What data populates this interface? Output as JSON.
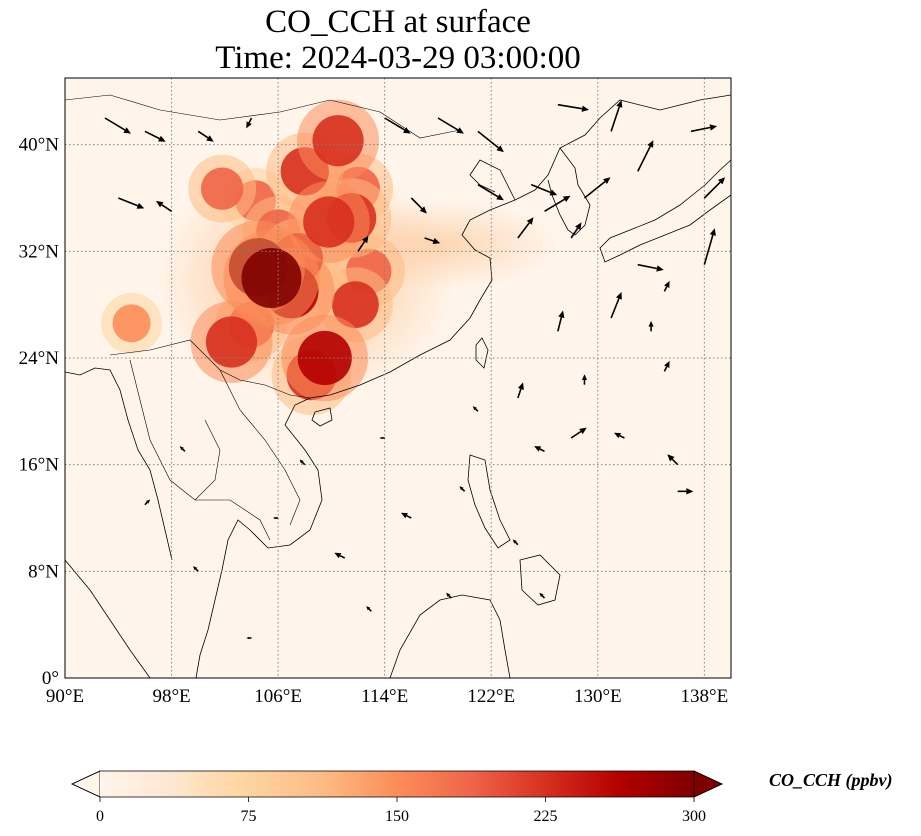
{
  "title": {
    "line1": "CO_CCH at surface",
    "line2": "Time: 2024-03-29 03:00:00"
  },
  "map": {
    "projection": "PlateCarree",
    "lon_range": [
      90,
      140
    ],
    "lat_range": [
      0,
      45
    ],
    "gridlines": "dotted",
    "background_color": "#fff5eb",
    "coastline_color": "#000000",
    "lon_ticks": [
      {
        "value": 90,
        "label": "90°E"
      },
      {
        "value": 98,
        "label": "98°E"
      },
      {
        "value": 106,
        "label": "106°E"
      },
      {
        "value": 114,
        "label": "114°E"
      },
      {
        "value": 122,
        "label": "122°E"
      },
      {
        "value": 130,
        "label": "130°E"
      },
      {
        "value": 138,
        "label": "138°E"
      }
    ],
    "lat_ticks": [
      {
        "value": 0,
        "label": "0°"
      },
      {
        "value": 8,
        "label": "8°N"
      },
      {
        "value": 16,
        "label": "16°N"
      },
      {
        "value": 24,
        "label": "24°N"
      },
      {
        "value": 32,
        "label": "32°N"
      },
      {
        "value": 40,
        "label": "40°N"
      }
    ],
    "pollution_hotspots": [
      {
        "lon": 105.5,
        "lat": 30.0,
        "ppbv": 300
      },
      {
        "lon": 104.5,
        "lat": 30.8,
        "ppbv": 290
      },
      {
        "lon": 107.0,
        "lat": 29.0,
        "ppbv": 260
      },
      {
        "lon": 107.5,
        "lat": 31.5,
        "ppbv": 230
      },
      {
        "lon": 109.8,
        "lat": 34.2,
        "ppbv": 240
      },
      {
        "lon": 111.5,
        "lat": 34.5,
        "ppbv": 230
      },
      {
        "lon": 108.0,
        "lat": 38.0,
        "ppbv": 220
      },
      {
        "lon": 110.5,
        "lat": 40.3,
        "ppbv": 240
      },
      {
        "lon": 109.5,
        "lat": 24.0,
        "ppbv": 260
      },
      {
        "lon": 108.5,
        "lat": 22.7,
        "ppbv": 230
      },
      {
        "lon": 102.5,
        "lat": 25.2,
        "ppbv": 240
      },
      {
        "lon": 104.0,
        "lat": 26.5,
        "ppbv": 200
      },
      {
        "lon": 111.8,
        "lat": 28.0,
        "ppbv": 210
      },
      {
        "lon": 112.8,
        "lat": 30.5,
        "ppbv": 200
      },
      {
        "lon": 101.8,
        "lat": 36.7,
        "ppbv": 180
      },
      {
        "lon": 104.3,
        "lat": 35.8,
        "ppbv": 170
      },
      {
        "lon": 106.0,
        "lat": 33.5,
        "ppbv": 190
      },
      {
        "lon": 95.0,
        "lat": 26.6,
        "ppbv": 150
      },
      {
        "lon": 112.0,
        "lat": 36.7,
        "ppbv": 190
      }
    ],
    "wind_vectors": [
      {
        "lon": 93,
        "lat": 42,
        "u": 5,
        "v": -3
      },
      {
        "lon": 96,
        "lat": 41,
        "u": 4,
        "v": -2
      },
      {
        "lon": 100,
        "lat": 41,
        "u": 3,
        "v": -2
      },
      {
        "lon": 104,
        "lat": 42,
        "u": -1,
        "v": -2
      },
      {
        "lon": 114,
        "lat": 42,
        "u": 5,
        "v": -3
      },
      {
        "lon": 118,
        "lat": 42,
        "u": 5,
        "v": -3
      },
      {
        "lon": 121,
        "lat": 41,
        "u": 5,
        "v": -4
      },
      {
        "lon": 127,
        "lat": 43,
        "u": 6,
        "v": -1
      },
      {
        "lon": 131,
        "lat": 41,
        "u": 2,
        "v": 6
      },
      {
        "lon": 137,
        "lat": 41,
        "u": 5,
        "v": 1
      },
      {
        "lon": 94,
        "lat": 36,
        "u": 5,
        "v": -2
      },
      {
        "lon": 98,
        "lat": 35,
        "u": -3,
        "v": 2
      },
      {
        "lon": 116,
        "lat": 36,
        "u": 3,
        "v": -3
      },
      {
        "lon": 121,
        "lat": 37,
        "u": 5,
        "v": -3
      },
      {
        "lon": 125,
        "lat": 37,
        "u": 5,
        "v": -2
      },
      {
        "lon": 129,
        "lat": 36,
        "u": 5,
        "v": 4
      },
      {
        "lon": 133,
        "lat": 38,
        "u": 3,
        "v": 6
      },
      {
        "lon": 138,
        "lat": 36,
        "u": 4,
        "v": 4
      },
      {
        "lon": 112,
        "lat": 32,
        "u": 2,
        "v": 3
      },
      {
        "lon": 117,
        "lat": 33,
        "u": 3,
        "v": -1
      },
      {
        "lon": 124,
        "lat": 33,
        "u": 3,
        "v": 4
      },
      {
        "lon": 126,
        "lat": 35,
        "u": 5,
        "v": 3
      },
      {
        "lon": 128,
        "lat": 33,
        "u": 2,
        "v": 3
      },
      {
        "lon": 133,
        "lat": 31,
        "u": 5,
        "v": -1
      },
      {
        "lon": 138,
        "lat": 31,
        "u": 2,
        "v": 7
      },
      {
        "lon": 135,
        "lat": 29,
        "u": 1,
        "v": 2
      },
      {
        "lon": 127,
        "lat": 26,
        "u": 1,
        "v": 4
      },
      {
        "lon": 131,
        "lat": 27,
        "u": 2,
        "v": 5
      },
      {
        "lon": 134,
        "lat": 26,
        "u": 0,
        "v": 2
      },
      {
        "lon": 124,
        "lat": 21,
        "u": 1,
        "v": 3
      },
      {
        "lon": 129,
        "lat": 22,
        "u": 0,
        "v": 2
      },
      {
        "lon": 135,
        "lat": 23,
        "u": 1,
        "v": 2
      },
      {
        "lon": 126,
        "lat": 17,
        "u": -2,
        "v": 1
      },
      {
        "lon": 128,
        "lat": 18,
        "u": 3,
        "v": 2
      },
      {
        "lon": 132,
        "lat": 18,
        "u": -2,
        "v": 1
      },
      {
        "lon": 136,
        "lat": 16,
        "u": -2,
        "v": 2
      },
      {
        "lon": 136,
        "lat": 14,
        "u": 3,
        "v": 0
      },
      {
        "lon": 120,
        "lat": 14,
        "u": -1,
        "v": 1
      },
      {
        "lon": 116,
        "lat": 12,
        "u": -2,
        "v": 1
      },
      {
        "lon": 124,
        "lat": 10,
        "u": -1,
        "v": 1
      },
      {
        "lon": 111,
        "lat": 9,
        "u": -2,
        "v": 1
      },
      {
        "lon": 106,
        "lat": 12,
        "u": -1,
        "v": 0
      },
      {
        "lon": 100,
        "lat": 8,
        "u": -1,
        "v": 1
      },
      {
        "lon": 96,
        "lat": 13,
        "u": 1,
        "v": 1
      },
      {
        "lon": 99,
        "lat": 17,
        "u": -1,
        "v": 1
      },
      {
        "lon": 104,
        "lat": 3,
        "u": -1,
        "v": 0
      },
      {
        "lon": 113,
        "lat": 5,
        "u": -1,
        "v": 1
      },
      {
        "lon": 119,
        "lat": 6,
        "u": -1,
        "v": 1
      },
      {
        "lon": 126,
        "lat": 6,
        "u": -1,
        "v": 1
      },
      {
        "lon": 108,
        "lat": 16,
        "u": -1,
        "v": 1
      },
      {
        "lon": 114,
        "lat": 18,
        "u": -1,
        "v": 0
      },
      {
        "lon": 121,
        "lat": 20,
        "u": -1,
        "v": 1
      }
    ]
  },
  "colorbar": {
    "title": "CO_CCH (ppbv)",
    "colormap": "OrRd",
    "min": 0,
    "max": 300,
    "extend": "both",
    "ticks": [
      {
        "value": 0,
        "label": "0"
      },
      {
        "value": 75,
        "label": "75"
      },
      {
        "value": 150,
        "label": "150"
      },
      {
        "value": 225,
        "label": "225"
      },
      {
        "value": 300,
        "label": "300"
      }
    ],
    "colors": [
      "#fff5eb",
      "#fee6ce",
      "#fdd49e",
      "#fdbb84",
      "#fc8d59",
      "#ef6548",
      "#d7301f",
      "#b30000",
      "#7f0000"
    ]
  }
}
